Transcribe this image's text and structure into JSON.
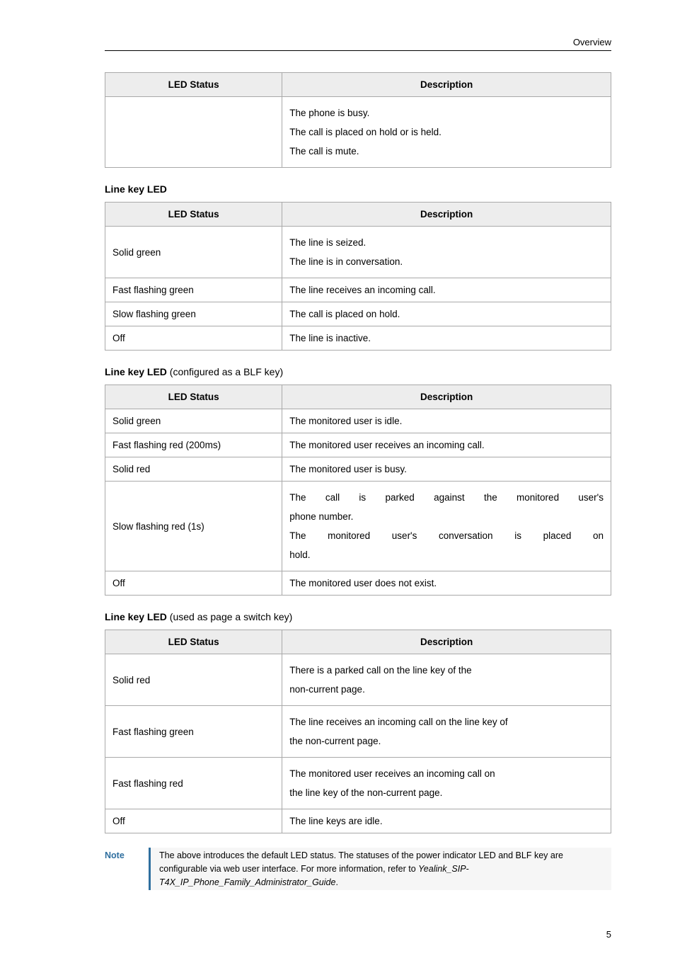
{
  "header": {
    "title": "Overview"
  },
  "table1": {
    "head": {
      "status": "LED Status",
      "desc": "Description"
    },
    "rows": [
      {
        "status": "",
        "desc_lines": [
          "The phone is busy.",
          "The call is placed on hold or is held.",
          "The call is mute."
        ]
      }
    ]
  },
  "section2": {
    "title": "Line key LED"
  },
  "table2": {
    "head": {
      "status": "LED Status",
      "desc": "Description"
    },
    "rows": [
      {
        "status": "Solid green",
        "desc_lines": [
          "The line is seized.",
          "The line is in conversation."
        ]
      },
      {
        "status": "Fast flashing green",
        "desc_lines": [
          "The line receives an incoming call."
        ]
      },
      {
        "status": "Slow flashing green",
        "desc_lines": [
          "The call is placed on hold."
        ]
      },
      {
        "status": "Off",
        "desc_lines": [
          "The line is inactive."
        ]
      }
    ]
  },
  "section3": {
    "title_bold": "Line key LED",
    "title_light": " (configured as a BLF key)"
  },
  "table3": {
    "head": {
      "status": "LED Status",
      "desc": "Description"
    },
    "rows": [
      {
        "status": "Solid green",
        "desc_lines": [
          "The monitored user is idle."
        ]
      },
      {
        "status": "Fast flashing red (200ms)",
        "desc_lines": [
          "The monitored user receives an incoming call."
        ]
      },
      {
        "status": "Solid red",
        "desc_lines": [
          "The monitored user is busy."
        ]
      },
      {
        "status": "Slow flashing red (1s)",
        "desc_justify": [
          "The call is parked against the monitored user's",
          "phone number.",
          "The monitored user's conversation is placed on",
          "hold."
        ]
      },
      {
        "status": "Off",
        "desc_lines": [
          "The monitored user does not exist."
        ]
      }
    ]
  },
  "section4": {
    "title_bold": "Line key LED",
    "title_light": " (used as page a switch key)"
  },
  "table4": {
    "head": {
      "status": "LED Status",
      "desc": "Description"
    },
    "rows": [
      {
        "status": "Solid red",
        "desc_lines": [
          "There is a parked call on the line key of the",
          "non-current page."
        ]
      },
      {
        "status": "Fast flashing green",
        "desc_lines": [
          "The line receives an incoming call on the line key of",
          "the non-current page."
        ]
      },
      {
        "status": "Fast flashing red",
        "desc_lines": [
          "The monitored user receives an incoming call on",
          "the line key of the non-current page."
        ]
      },
      {
        "status": "Off",
        "desc_lines": [
          "The line keys are idle."
        ]
      }
    ]
  },
  "note": {
    "label": "Note",
    "text1": "The above introduces the default LED status. The statuses of the power indicator LED and BLF key are configurable via web user interface. For more information, refer to ",
    "ref": "Yealink_SIP-T4X_IP_Phone_Family_Administrator_Guide",
    "period": "."
  },
  "page_number": "5"
}
